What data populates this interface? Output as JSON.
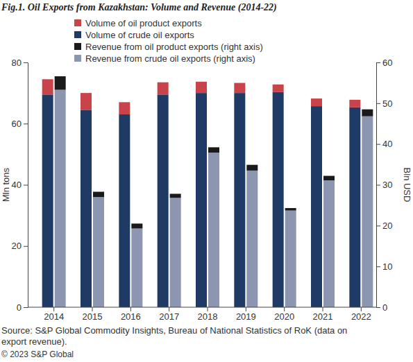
{
  "chart_data": {
    "type": "bar",
    "title": "Fig.1. Oil Exports from Kazakhstan: Volume and Revenue (2014-22)",
    "categories": [
      "2014",
      "2015",
      "2016",
      "2017",
      "2018",
      "2019",
      "2020",
      "2021",
      "2022"
    ],
    "stacked": true,
    "grid": false,
    "legend": "top-left",
    "y_label": "Mln tons",
    "y2_label": "Bln USD",
    "ylim": [
      0,
      80
    ],
    "yticks": [
      0,
      20,
      40,
      60,
      80
    ],
    "y2lim": [
      0,
      60
    ],
    "y2ticks": [
      0,
      10,
      20,
      30,
      40,
      50,
      60
    ],
    "series": [
      {
        "name": "Volume of oil product exports",
        "color": "#c8434a",
        "axis": "y",
        "values": [
          5.0,
          5.5,
          4.0,
          4.0,
          3.7,
          3.3,
          2.5,
          2.5,
          2.5
        ]
      },
      {
        "name": "Volume of crude oil exports",
        "color": "#1f3a64",
        "axis": "y",
        "values": [
          69.5,
          64.5,
          63.0,
          69.5,
          70.0,
          70.0,
          70.3,
          65.7,
          65.3
        ]
      },
      {
        "name": "Revenue from oil product exports (right axis)",
        "color": "#1a1a1a",
        "axis": "y2",
        "values": [
          3.3,
          1.3,
          1.2,
          1.0,
          1.3,
          1.4,
          0.6,
          1.1,
          1.7
        ]
      },
      {
        "name": "Revenue from crude oil exports (right axis)",
        "color": "#8d96b0",
        "axis": "y2",
        "values": [
          53.3,
          27.0,
          19.3,
          26.8,
          37.9,
          33.5,
          23.7,
          31.1,
          46.8
        ]
      }
    ],
    "source_lines": [
      "Source: S&P Global Commodity Insights, Bureau of National Statistics of RoK (data on",
      "export revenue)."
    ],
    "copyright": "© 2023 S&P Global"
  }
}
